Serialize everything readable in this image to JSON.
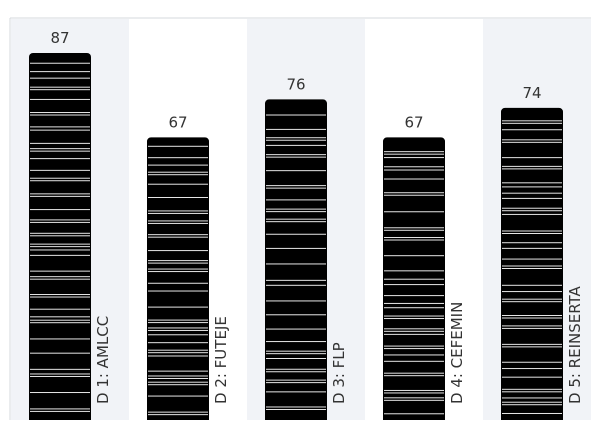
{
  "chart_data": {
    "type": "bar",
    "categories": [
      "D 1: AMLCC",
      "D 2: FUTEJE",
      "D 3: FLP",
      "D 4: CEFEMIN",
      "D 5: REINSERTA"
    ],
    "values": [
      87,
      67,
      76,
      67,
      74
    ],
    "title": "",
    "xlabel": "",
    "ylabel": "",
    "grid": false,
    "legend": "none",
    "bar_color": "#000000",
    "stripe_color": "#ffffff",
    "band_colors": [
      "#f1f3f7",
      "#ffffff"
    ],
    "frame_color": "#d6d9de",
    "label_color": "#333333"
  }
}
